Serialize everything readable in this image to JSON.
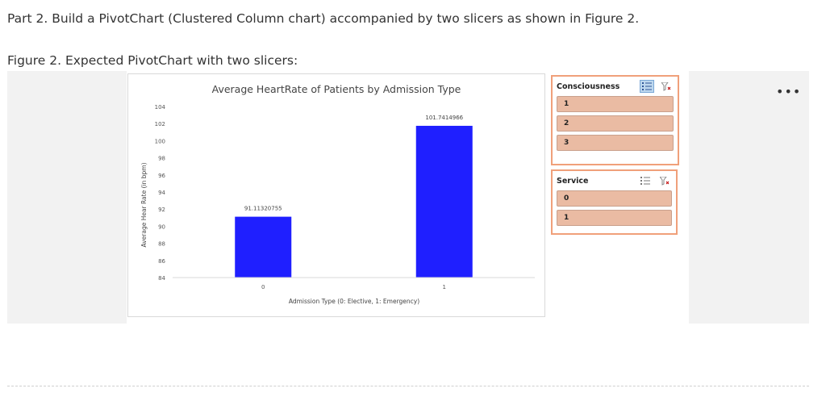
{
  "doc": {
    "part_title": "Part 2. Build a PivotChart (Clustered Column chart) accompanied by two slicers as shown in Figure 2.",
    "figure_caption": "Figure 2. Expected PivotChart with two slicers:"
  },
  "chart_data": {
    "type": "bar",
    "title": "Average HeartRate of Patients by Admission Type",
    "xlabel": "Admission Type (0: Elective, 1: Emergency)",
    "ylabel": "Average Hear Rate (in bpm)",
    "categories": [
      "0",
      "1"
    ],
    "values": [
      91.11320755,
      101.7414966
    ],
    "value_labels": [
      "91.11320755",
      "101.7414966"
    ],
    "ylim": [
      84,
      104
    ],
    "yticks": [
      84,
      86,
      88,
      90,
      92,
      94,
      96,
      98,
      100,
      102,
      104
    ],
    "bar_color": "#1f1fff",
    "grid": false,
    "legend": "none"
  },
  "slicers": {
    "consciousness": {
      "title": "Consciousness",
      "items": [
        "1",
        "2",
        "3"
      ],
      "multiselect_active": true
    },
    "service": {
      "title": "Service",
      "items": [
        "0",
        "1"
      ],
      "multiselect_active": false
    }
  },
  "colors": {
    "slicer_border": "#f0a07a",
    "slicer_item": "#eabba3"
  },
  "icons": {
    "more": "more-options-icon",
    "multiselect": "multiselect-icon",
    "clear_filter": "clear-filter-icon"
  }
}
